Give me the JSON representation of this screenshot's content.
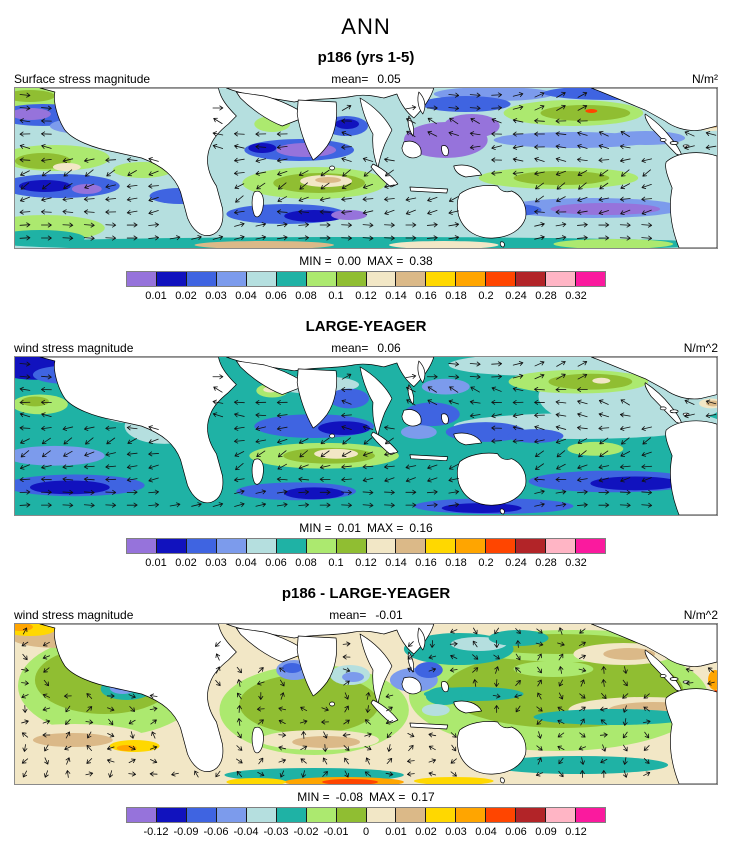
{
  "figure": {
    "title": "ANN"
  },
  "colorbar": {
    "colors": [
      "#9673DB",
      "#1112BE",
      "#3F64E1",
      "#7C9BEC",
      "#B5DFDF",
      "#1FB2A5",
      "#ACE96F",
      "#90BE32",
      "#F2E7C6",
      "#DBB988",
      "#FFD800",
      "#FFA500",
      "#FF4500",
      "#B22428",
      "#FFB5C5",
      "#FA1A9E"
    ]
  },
  "panels": [
    {
      "subtitle": "p186 (yrs 1-5)",
      "field_label": "Surface stress magnitude",
      "mean_label": "mean=",
      "mean_value": "0.05",
      "units": "N/m²",
      "min_label": "MIN =",
      "min_value": "0.00",
      "max_label": "MAX =",
      "max_value": "0.38",
      "ticks": [
        "0.01",
        "0.02",
        "0.03",
        "0.04",
        "0.06",
        "0.08",
        "0.1",
        "0.12",
        "0.14",
        "0.16",
        "0.18",
        "0.2",
        "0.24",
        "0.28",
        "0.32"
      ]
    },
    {
      "subtitle": "LARGE-YEAGER",
      "field_label": "wind stress magnitude",
      "mean_label": "mean=",
      "mean_value": "0.06",
      "units": "N/m^2",
      "min_label": "MIN =",
      "min_value": "0.01",
      "max_label": "MAX =",
      "max_value": "0.16",
      "ticks": [
        "0.01",
        "0.02",
        "0.03",
        "0.04",
        "0.06",
        "0.08",
        "0.1",
        "0.12",
        "0.14",
        "0.16",
        "0.18",
        "0.2",
        "0.24",
        "0.28",
        "0.32"
      ]
    },
    {
      "subtitle": "p186 - LARGE-YEAGER",
      "field_label": "wind stress magnitude",
      "mean_label": "mean=",
      "mean_value": "-0.01",
      "units": "N/m^2",
      "min_label": "MIN =",
      "min_value": "-0.08",
      "max_label": "MAX =",
      "max_value": "0.17",
      "ticks": [
        "-0.12",
        "-0.09",
        "-0.06",
        "-0.04",
        "-0.03",
        "-0.02",
        "-0.01",
        "0",
        "0.01",
        "0.02",
        "0.03",
        "0.04",
        "0.06",
        "0.09",
        "0.12"
      ]
    }
  ],
  "chart_data": {
    "type": "heatmap",
    "title": "ANN",
    "subtitle": "Global surface wind stress magnitude maps with vector overlay",
    "colorbar_colors": [
      "#9673DB",
      "#1112BE",
      "#3F64E1",
      "#7C9BEC",
      "#B5DFDF",
      "#1FB2A5",
      "#ACE96F",
      "#90BE32",
      "#F2E7C6",
      "#DBB988",
      "#FFD800",
      "#FFA500",
      "#FF4500",
      "#B22428",
      "#FFB5C5",
      "#FA1A9E"
    ],
    "panels": [
      {
        "title": "p186 (yrs 1-5)",
        "variable": "Surface stress magnitude",
        "units": "N/m²",
        "mean": 0.05,
        "min": 0.0,
        "max": 0.38,
        "levels": [
          0.01,
          0.02,
          0.03,
          0.04,
          0.06,
          0.08,
          0.1,
          0.12,
          0.14,
          0.16,
          0.18,
          0.2,
          0.24,
          0.28,
          0.32
        ]
      },
      {
        "title": "LARGE-YEAGER",
        "variable": "wind stress magnitude",
        "units": "N/m^2",
        "mean": 0.06,
        "min": 0.01,
        "max": 0.16,
        "levels": [
          0.01,
          0.02,
          0.03,
          0.04,
          0.06,
          0.08,
          0.1,
          0.12,
          0.14,
          0.16,
          0.18,
          0.2,
          0.24,
          0.28,
          0.32
        ]
      },
      {
        "title": "p186 - LARGE-YEAGER",
        "variable": "wind stress magnitude",
        "units": "N/m^2",
        "mean": -0.01,
        "min": -0.08,
        "max": 0.17,
        "levels": [
          -0.12,
          -0.09,
          -0.06,
          -0.04,
          -0.03,
          -0.02,
          -0.01,
          0,
          0.01,
          0.02,
          0.03,
          0.04,
          0.06,
          0.09,
          0.12
        ]
      }
    ]
  }
}
